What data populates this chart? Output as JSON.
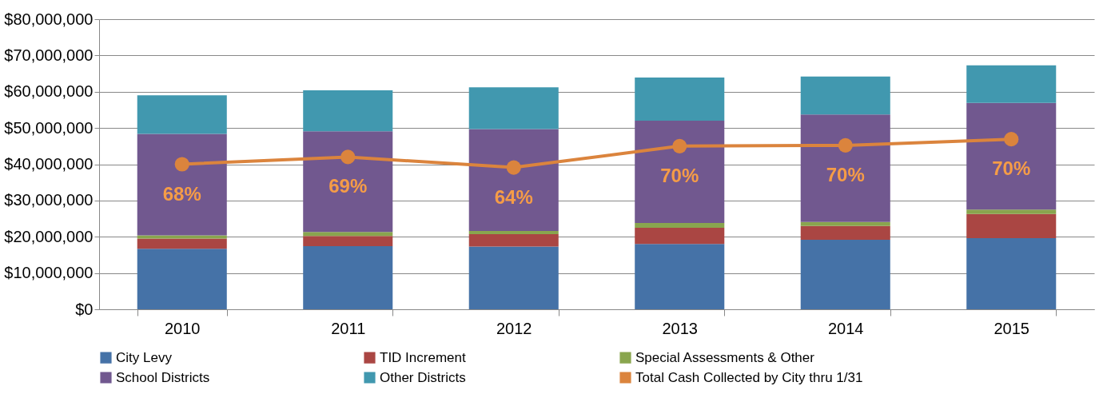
{
  "chart_data": {
    "type": "bar",
    "stacked": true,
    "categories": [
      "2010",
      "2011",
      "2012",
      "2013",
      "2014",
      "2015"
    ],
    "series": [
      {
        "name": "City Levy",
        "color": "#4572a7",
        "values": [
          16700000,
          17400000,
          17300000,
          18000000,
          19200000,
          19600000
        ]
      },
      {
        "name": "TID Increment",
        "color": "#aa4643",
        "values": [
          2800000,
          2800000,
          3400000,
          4500000,
          3800000,
          6700000
        ]
      },
      {
        "name": "Special Assessments & Other",
        "color": "#89a54e",
        "values": [
          900000,
          1100000,
          900000,
          1300000,
          1100000,
          1200000
        ]
      },
      {
        "name": "School Districts",
        "color": "#71588f",
        "values": [
          28000000,
          27800000,
          28100000,
          28200000,
          29600000,
          29400000
        ]
      },
      {
        "name": "Other Districts",
        "color": "#4198af",
        "values": [
          10600000,
          11300000,
          11500000,
          11900000,
          10500000,
          10400000
        ]
      },
      {
        "name": "Total Cash Collected by City thru 1/31",
        "type": "line",
        "color": "#db843d",
        "marker": "circle",
        "values": [
          40000000,
          42000000,
          39100000,
          45000000,
          45200000,
          46900000
        ]
      }
    ],
    "annotations": [
      "68%",
      "69%",
      "64%",
      "70%",
      "70%",
      "70%"
    ],
    "ylim": [
      0,
      80000000
    ],
    "yticks": [
      {
        "value": 0,
        "label": "$0"
      },
      {
        "value": 10000000,
        "label": "$10,000,000"
      },
      {
        "value": 20000000,
        "label": "$20,000,000"
      },
      {
        "value": 30000000,
        "label": "$30,000,000"
      },
      {
        "value": 40000000,
        "label": "$40,000,000"
      },
      {
        "value": 50000000,
        "label": "$50,000,000"
      },
      {
        "value": 60000000,
        "label": "$60,000,000"
      },
      {
        "value": 70000000,
        "label": "$70,000,000"
      },
      {
        "value": 80000000,
        "label": "$80,000,000"
      }
    ],
    "grid": "y",
    "legend": "bottom"
  }
}
